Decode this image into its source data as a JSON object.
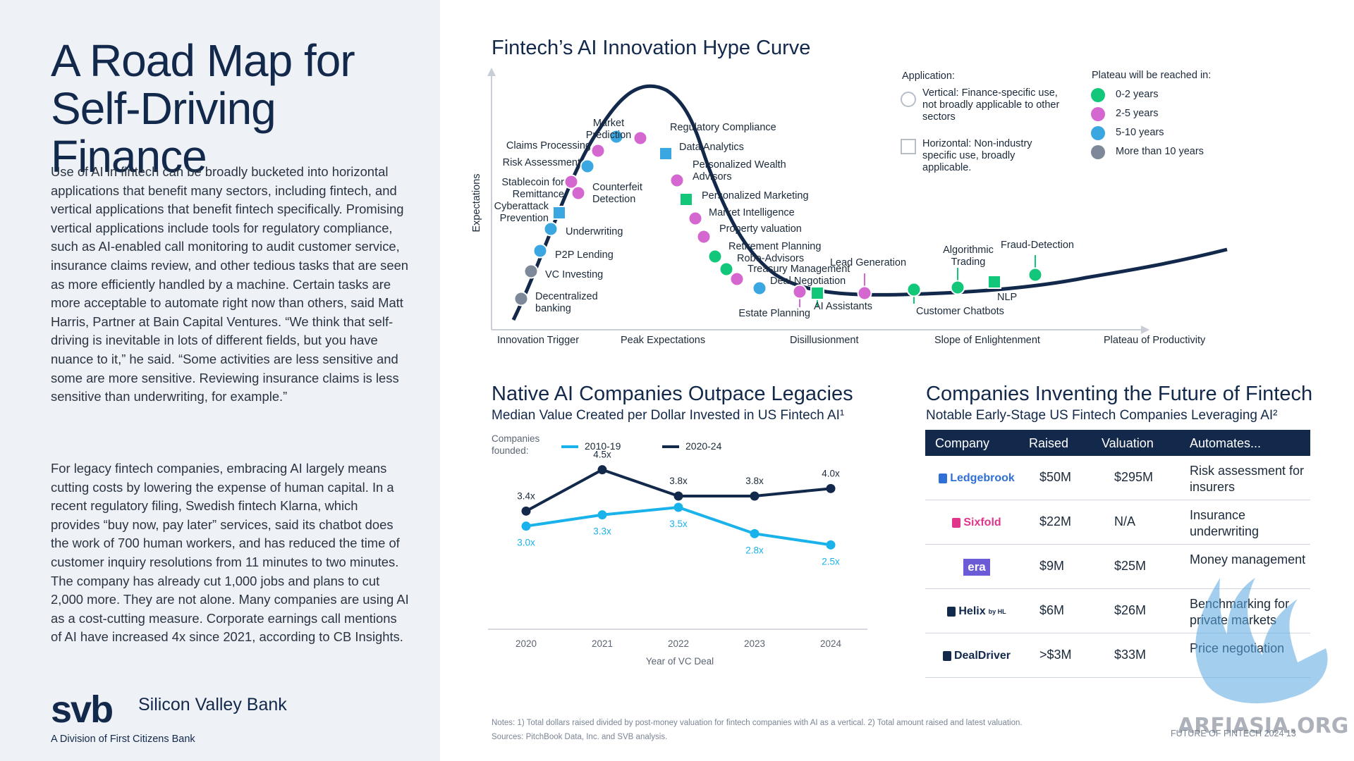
{
  "left": {
    "title": "A Road Map for Self-Driving Finance",
    "paragraph1": "Use of AI in fintech can be broadly bucketed into horizontal applications that benefit many sectors, including fintech, and vertical applications that benefit fintech specifically. Promising vertical applications include tools for regulatory compliance, such as AI-enabled call monitoring to audit customer service, insurance claims review, and other tedious tasks that are seen as more efficiently handled by a machine. Certain tasks are more acceptable to automate right now than others, said Matt Harris, Partner at Bain Capital Ventures. “We think that self-driving is inevitable in lots of different fields, but you have nuance to it,” he said. “Some activities are less sensitive and some are more sensitive. Reviewing insurance claims is less sensitive than underwriting, for example.”",
    "paragraph2": "For legacy fintech companies, embracing AI largely means cutting costs by lowering the expense of human capital. In a recent regulatory filing, Swedish fintech Klarna, which provides “buy now, pay later” services, said its chatbot does the work of 700 human workers, and has reduced the time of customer inquiry resolutions from 11 minutes to two minutes. The company has already cut 1,000 jobs and plans to cut 2,000 more. They are not alone. Many companies are using AI as a cost-cutting measure. Corporate earnings call mentions of AI have increased 4x since 2021, according to CB Insights.",
    "logo": {
      "mark": "svb",
      "name": "Silicon Valley Bank",
      "tagline": "A Division of First Citizens Bank"
    }
  },
  "hype": {
    "title": "Fintech’s AI Innovation Hype Curve",
    "legend": {
      "application_title": "Application:",
      "vertical": "Vertical: Finance-specific use, not broadly applicable to other sectors",
      "horizontal": "Horizontal: Non-industry specific use, broadly applicable.",
      "plateau_title": "Plateau will be reached in:",
      "plateau_items": [
        {
          "label": "0-2 years",
          "color": "#13c77a"
        },
        {
          "label": "2-5 years",
          "color": "#d468d0"
        },
        {
          "label": "5-10 years",
          "color": "#3aa7e0"
        },
        {
          "label": "More than 10 years",
          "color": "#7d8999"
        }
      ]
    }
  },
  "native": {
    "title": "Native AI Companies Outpace Legacies",
    "subtitle": "Median Value Created per Dollar Invested in US Fintech AI¹",
    "legend_label": "Companies founded:"
  },
  "companies": {
    "title": "Companies Inventing the Future of Fintech",
    "subtitle": "Notable Early-Stage US Fintech Companies Leveraging AI²",
    "headers": [
      "Company",
      "Raised",
      "Valuation",
      "Automates..."
    ],
    "rows": [
      {
        "company": "Ledgebrook",
        "brand_color": "#2f6fd6",
        "raised": "$50M",
        "valuation": "$295M",
        "automates": "Risk assessment for insurers"
      },
      {
        "company": "Sixfold",
        "brand_color": "#e0358a",
        "raised": "$22M",
        "valuation": "N/A",
        "automates": "Insurance underwriting"
      },
      {
        "company": "era",
        "brand_color": "#6b5bd6",
        "raised": "$9M",
        "valuation": "$25M",
        "automates": "Money management"
      },
      {
        "company": "Helix",
        "company_suffix": "by HL",
        "brand_color": "#13294b",
        "raised": "$6M",
        "valuation": "$26M",
        "automates": "Benchmarking for private markets"
      },
      {
        "company": "DealDriver",
        "brand_color": "#13294b",
        "raised": ">$3M",
        "valuation": "$33M",
        "automates": "Price negotiation"
      }
    ]
  },
  "footer": {
    "notes": "Notes: 1) Total dollars raised divided by post-money valuation for fintech companies with AI as a vertical. 2) Total amount raised and latest valuation.",
    "sources": "Sources: PitchBook Data, Inc. and SVB analysis.",
    "report": "FUTURE OF FINTECH 2024   13"
  },
  "watermark": {
    "text": "ARFIASIA.ORG"
  },
  "chart_data": [
    {
      "type": "scatter",
      "title": "Fintech’s AI Innovation Hype Curve",
      "ylabel": "Expectations",
      "phases": [
        "Innovation Trigger",
        "Peak Expectations",
        "Disillusionment",
        "Slope of Enlightenment",
        "Plateau of Productivity"
      ],
      "points": [
        {
          "label": "Decentralized banking",
          "plateau": "More than 10 years",
          "application": "Vertical"
        },
        {
          "label": "VC Investing",
          "plateau": "More than 10 years",
          "application": "Vertical"
        },
        {
          "label": "P2P Lending",
          "plateau": "5-10 years",
          "application": "Vertical"
        },
        {
          "label": "Underwriting",
          "plateau": "5-10 years",
          "application": "Vertical"
        },
        {
          "label": "Cyberattack Prevention",
          "plateau": "5-10 years",
          "application": "Horizontal"
        },
        {
          "label": "Stablecoin for Remittance",
          "plateau": "2-5 years",
          "application": "Vertical"
        },
        {
          "label": "Counterfeit Detection",
          "plateau": "2-5 years",
          "application": "Vertical"
        },
        {
          "label": "Risk Assessment",
          "plateau": "5-10 years",
          "application": "Vertical"
        },
        {
          "label": "Claims Processing",
          "plateau": "2-5 years",
          "application": "Vertical"
        },
        {
          "label": "Market Prediction",
          "plateau": "5-10 years",
          "application": "Vertical"
        },
        {
          "label": "Regulatory Compliance",
          "plateau": "2-5 years",
          "application": "Vertical"
        },
        {
          "label": "Data Analytics",
          "plateau": "5-10 years",
          "application": "Horizontal"
        },
        {
          "label": "Personalized Wealth Advisors",
          "plateau": "2-5 years",
          "application": "Vertical"
        },
        {
          "label": "Personalized Marketing",
          "plateau": "0-2 years",
          "application": "Horizontal"
        },
        {
          "label": "Market Intelligence",
          "plateau": "2-5 years",
          "application": "Vertical"
        },
        {
          "label": "Property valuation",
          "plateau": "2-5 years",
          "application": "Vertical"
        },
        {
          "label": "Retirement Planning",
          "plateau": "0-2 years",
          "application": "Vertical"
        },
        {
          "label": "Robo-Advisors",
          "plateau": "0-2 years",
          "application": "Vertical"
        },
        {
          "label": "Treasury Management",
          "plateau": "2-5 years",
          "application": "Vertical"
        },
        {
          "label": "Deal Negotiation",
          "plateau": "5-10 years",
          "application": "Vertical"
        },
        {
          "label": "Estate Planning",
          "plateau": "2-5 years",
          "application": "Vertical"
        },
        {
          "label": "AI Assistants",
          "plateau": "0-2 years",
          "application": "Horizontal"
        },
        {
          "label": "Lead Generation",
          "plateau": "2-5 years",
          "application": "Vertical"
        },
        {
          "label": "Customer Chatbots",
          "plateau": "0-2 years",
          "application": "Vertical"
        },
        {
          "label": "Algorithmic Trading",
          "plateau": "0-2 years",
          "application": "Vertical"
        },
        {
          "label": "NLP",
          "plateau": "0-2 years",
          "application": "Horizontal"
        },
        {
          "label": "Fraud-Detection",
          "plateau": "0-2 years",
          "application": "Vertical"
        }
      ]
    },
    {
      "type": "line",
      "title": "Native AI Companies Outpace Legacies",
      "xlabel": "Year of VC Deal",
      "x": [
        "2020",
        "2021",
        "2022",
        "2023",
        "2024"
      ],
      "ylim": [
        2,
        5
      ],
      "series": [
        {
          "name": "2010-19",
          "color": "#1ab2ea",
          "values": [
            3.0,
            3.3,
            3.5,
            2.8,
            2.5
          ],
          "labels": [
            "3.0x",
            "3.3x",
            "3.5x",
            "2.8x",
            "2.5x"
          ]
        },
        {
          "name": "2020-24",
          "color": "#13294b",
          "values": [
            3.4,
            4.5,
            3.8,
            3.8,
            4.0
          ],
          "labels": [
            "3.4x",
            "4.5x",
            "3.8x",
            "3.8x",
            "4.0x"
          ]
        }
      ]
    }
  ]
}
